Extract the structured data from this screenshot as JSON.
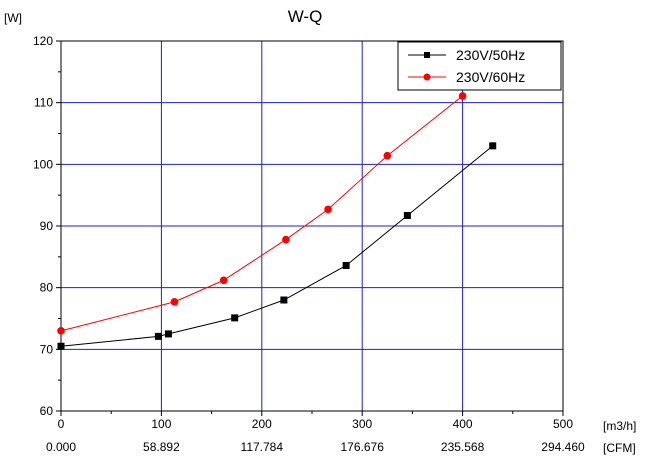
{
  "chart_data": {
    "type": "line",
    "title": "W-Q",
    "ylabel": "[W]",
    "xlabel": "[m3/h]",
    "x2label": "[CFM]",
    "xlim": [
      0,
      500
    ],
    "ylim": [
      60,
      120
    ],
    "x_ticks": [
      0,
      100,
      200,
      300,
      400,
      500
    ],
    "x2_ticks": [
      "0.000",
      "58.892",
      "117.784",
      "176.676",
      "235.568",
      "294.460"
    ],
    "y_ticks": [
      60,
      70,
      80,
      90,
      100,
      110,
      120
    ],
    "grid": true,
    "legend_position": "top-right",
    "colors": {
      "grid": "#1f1fc8",
      "axis": "#000000"
    },
    "series": [
      {
        "name": "230V/50Hz",
        "color": "#000000",
        "marker": "square",
        "x": [
          0,
          97,
          107,
          173,
          222,
          284,
          345,
          430
        ],
        "y": [
          70.5,
          72.1,
          72.5,
          75.1,
          78.0,
          83.6,
          91.7,
          103.0
        ]
      },
      {
        "name": "230V/60Hz",
        "color": "#ff0000",
        "marker": "circle",
        "x": [
          0,
          113,
          162,
          224,
          266,
          325,
          400
        ],
        "y": [
          73.0,
          77.7,
          81.2,
          87.8,
          92.7,
          101.4,
          111.1
        ]
      }
    ]
  }
}
